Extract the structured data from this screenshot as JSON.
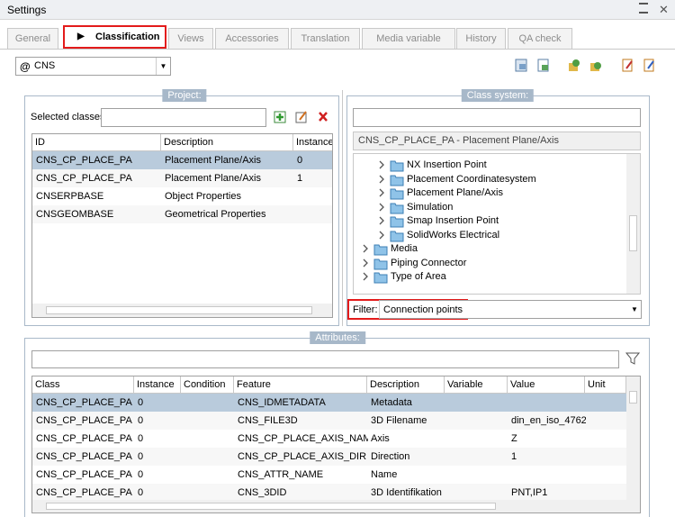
{
  "window": {
    "title": "Settings"
  },
  "tabs": [
    "General",
    "Classification",
    "Views",
    "Accessories",
    "Translation",
    "Media variable",
    "History",
    "QA check"
  ],
  "combo": {
    "icon": "@",
    "value": "CNS"
  },
  "project": {
    "title": "Project:",
    "selected_label": "Selected classes",
    "table": {
      "headers": [
        "ID",
        "Description",
        "Instance"
      ],
      "rows": [
        [
          "CNS_CP_PLACE_PA",
          "Placement Plane/Axis",
          0
        ],
        [
          "CNS_CP_PLACE_PA",
          "Placement Plane/Axis",
          1
        ],
        [
          "CNSERPBASE",
          "Object Properties",
          null
        ],
        [
          "CNSGEOMBASE",
          "Geometrical Properties",
          null
        ]
      ]
    }
  },
  "class_system": {
    "title": "Class system:",
    "path": "CNS_CP_PLACE_PA - Placement Plane/Axis",
    "tree": [
      {
        "label": "NX Insertion Point",
        "level": 2
      },
      {
        "label": "Placement Coordinatesystem",
        "level": 2
      },
      {
        "label": "Placement Plane/Axis",
        "level": 2
      },
      {
        "label": "Simulation",
        "level": 2
      },
      {
        "label": "Smap Insertion Point",
        "level": 2
      },
      {
        "label": "SolidWorks Electrical",
        "level": 2
      },
      {
        "label": "Media",
        "level": 1
      },
      {
        "label": "Piping Connector",
        "level": 1
      },
      {
        "label": "Type of Area",
        "level": 1
      }
    ],
    "filter_label": "Filter:",
    "filter_value": "Connection points"
  },
  "attributes": {
    "title": "Attributes:",
    "table": {
      "headers": [
        "Class",
        "Instance",
        "Condition",
        "Feature",
        "Description",
        "Variable",
        "Value",
        "Unit"
      ],
      "rows": [
        [
          "CNS_CP_PLACE_PA",
          0,
          null,
          "CNS_IDMETADATA",
          "Metadata",
          null,
          null,
          null
        ],
        [
          "CNS_CP_PLACE_PA",
          0,
          null,
          "CNS_FILE3D",
          "3D Filename",
          null,
          "din_en_iso_4762...",
          null
        ],
        [
          "CNS_CP_PLACE_PA",
          0,
          null,
          "CNS_CP_PLACE_AXIS_NAME",
          "Axis",
          null,
          "Z",
          null
        ],
        [
          "CNS_CP_PLACE_PA",
          0,
          null,
          "CNS_CP_PLACE_AXIS_DIR",
          "Direction",
          null,
          "1",
          null
        ],
        [
          "CNS_CP_PLACE_PA",
          0,
          null,
          "CNS_ATTR_NAME",
          "Name",
          null,
          null,
          null
        ],
        [
          "CNS_CP_PLACE_PA",
          0,
          null,
          "CNS_3DID",
          "3D Identifikation",
          null,
          "PNT,IP1",
          null
        ]
      ]
    }
  }
}
